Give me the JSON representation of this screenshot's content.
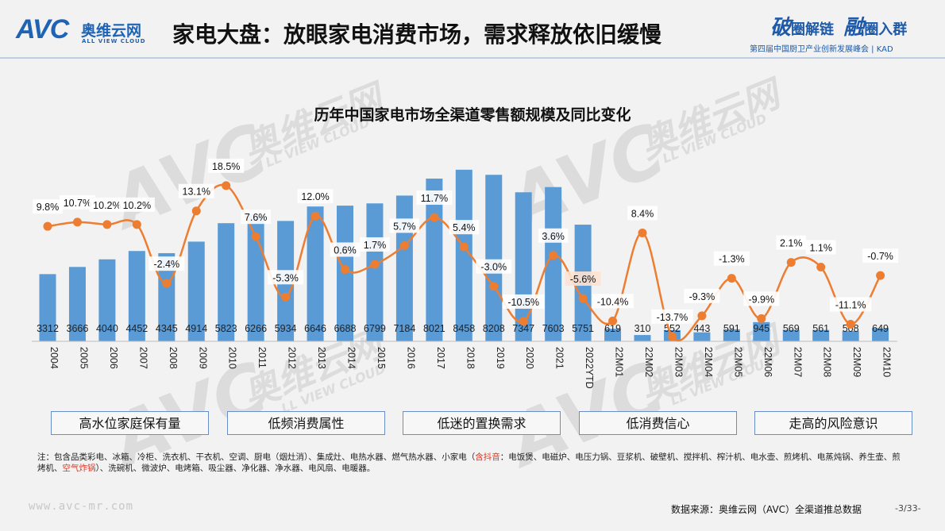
{
  "header": {
    "logo_mark": "AVC",
    "logo_cn": "奥维云网",
    "logo_en": "ALL VIEW CLOUD",
    "title": "家电大盘：放眼家电消费市场，需求释放依旧缓慢",
    "right_brand_1a": "破",
    "right_brand_1b": "圈解链",
    "right_brand_2a": "融",
    "right_brand_2b": "圈入群",
    "event_line": "第四届中国厨卫产业创新发展峰会 | KAD"
  },
  "watermarks": {
    "cn": "奥维云网",
    "en": "LL VIEW CLOUD",
    "mark": "AVC"
  },
  "chart_data": {
    "type": "bar",
    "title": "历年中国家电市场全渠道零售额规模及同比变化",
    "categories": [
      "2004",
      "2005",
      "2006",
      "2007",
      "2008",
      "2009",
      "2010",
      "2011",
      "2012",
      "2013",
      "2014",
      "2015",
      "2016",
      "2017",
      "2018",
      "2019",
      "2020",
      "2021",
      "2022YTD",
      "22M01",
      "22M02",
      "22M03",
      "22M04",
      "22M05",
      "22M06",
      "22M07",
      "22M08",
      "22M09",
      "22M10"
    ],
    "series": [
      {
        "values": [
          3312,
          3666,
          4040,
          4452,
          4345,
          4914,
          5823,
          6266,
          5934,
          6646,
          6688,
          6799,
          7184,
          8021,
          8458,
          8208,
          7347,
          7603,
          5751,
          619,
          310,
          552,
          443,
          591,
          945,
          569,
          561,
          508,
          649
        ]
      },
      {
        "values": [
          9.8,
          10.7,
          10.2,
          10.2,
          -2.4,
          13.1,
          18.5,
          7.6,
          -5.3,
          12.0,
          0.6,
          1.7,
          5.7,
          11.7,
          5.4,
          -3.0,
          -10.5,
          3.6,
          -5.6,
          -10.4,
          8.4,
          -13.7,
          -9.3,
          -1.3,
          -9.9,
          2.1,
          1.1,
          -11.1,
          -0.7
        ]
      }
    ],
    "bar_labels": [
      "3312",
      "3666",
      "4040",
      "4452",
      "4345",
      "4914",
      "5823",
      "6266",
      "5934",
      "6646",
      "6688",
      "6799",
      "7184",
      "8021",
      "8458",
      "8208",
      "7347",
      "7603",
      "5751",
      "619",
      "310",
      "552",
      "443",
      "591",
      "945",
      "569",
      "561",
      "508",
      "649"
    ],
    "line_labels": [
      "9.8%",
      "10.7%",
      "10.2%",
      "10.2%",
      "-2.4%",
      "13.1%",
      "18.5%",
      "7.6%",
      "-5.3%",
      "12.0%",
      "0.6%",
      "1.7%",
      "5.7%",
      "11.7%",
      "5.4%",
      "-3.0%",
      "-10.5%",
      "3.6%",
      "-5.6%",
      "-10.4%",
      "8.4%",
      "-13.7%",
      "-9.3%",
      "-1.3%",
      "-9.9%",
      "2.1%",
      "1.1%",
      "-11.1%",
      "-0.7%"
    ],
    "bar_color": "#5b9bd5",
    "line_color": "#ed7d31",
    "grid": false,
    "legend": "none"
  },
  "factors": [
    "高水位家庭保有量",
    "低频消费属性",
    "低迷的置换需求",
    "低消费信心",
    "走高的风险意识"
  ],
  "note": {
    "part1": "注：包含品类彩电、冰箱、冷柜、洗衣机、干衣机、空调、厨电（烟灶消）、集成灶、电热水器、燃气热水器、小家电（",
    "red1": "含抖音",
    "part2": "：电饭煲、电磁炉、电压力锅、豆浆机、破壁机、搅拌机、榨汁机、电水壶、煎烤机、电蒸炖锅、养生壶、煎烤机、",
    "red2": "空气炸锅",
    "part3": "）、洗碗机、微波炉、电烤箱、吸尘器、净化器、净水器、电风扇、电暖器。"
  },
  "footer": {
    "site": "www.avc-mr.com",
    "source": "数据来源：奥维云网（AVC）全渠道推总数据",
    "page": "-3/33-"
  }
}
